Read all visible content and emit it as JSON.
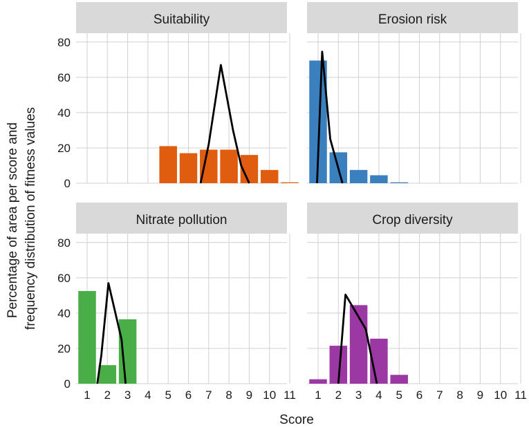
{
  "chart_data": {
    "type": "bar",
    "xlabel": "Score",
    "ylabel_lines": [
      "Percentage of area per score and",
      "frequency distribution of fitness values"
    ],
    "x_categories": [
      "1",
      "2",
      "3",
      "4",
      "5",
      "6",
      "7",
      "8",
      "9",
      "10",
      "11"
    ],
    "y_ticks": [
      "0",
      "20",
      "40",
      "60",
      "80"
    ],
    "ylim": [
      0,
      85
    ],
    "grid": true,
    "panels": [
      {
        "title": "Suitability",
        "color": "#E05C0F",
        "bars": [
          0,
          0,
          0,
          0,
          21,
          17,
          19,
          19,
          16,
          7.5,
          0.5
        ],
        "line_x": [
          6.6,
          7.0,
          7.6,
          8.2,
          8.6,
          9.0
        ],
        "line_y": [
          0,
          22,
          67,
          30,
          10,
          0
        ]
      },
      {
        "title": "Erosion risk",
        "color": "#3A80BF",
        "bars": [
          69.5,
          17.5,
          7.5,
          4.5,
          0.5,
          0,
          0,
          0,
          0,
          0,
          0
        ],
        "line_x": [
          0.95,
          1.2,
          1.6,
          2.2
        ],
        "line_y": [
          0,
          74.5,
          25,
          0
        ]
      },
      {
        "title": "Nitrate pollution",
        "color": "#4AAE48",
        "bars": [
          52.5,
          10.5,
          36.5,
          0,
          0,
          0,
          0,
          0,
          0,
          0,
          0
        ],
        "line_x": [
          1.5,
          1.7,
          2.05,
          2.7,
          2.9
        ],
        "line_y": [
          0,
          16,
          57,
          25,
          0
        ]
      },
      {
        "title": "Crop diversity",
        "color": "#9B38A4",
        "bars": [
          2.5,
          21.5,
          44.5,
          25.5,
          5,
          0,
          0,
          0,
          0,
          0,
          0
        ],
        "line_x": [
          2.0,
          2.35,
          3.35,
          3.9
        ],
        "line_y": [
          0,
          50.5,
          31,
          0
        ]
      }
    ]
  }
}
